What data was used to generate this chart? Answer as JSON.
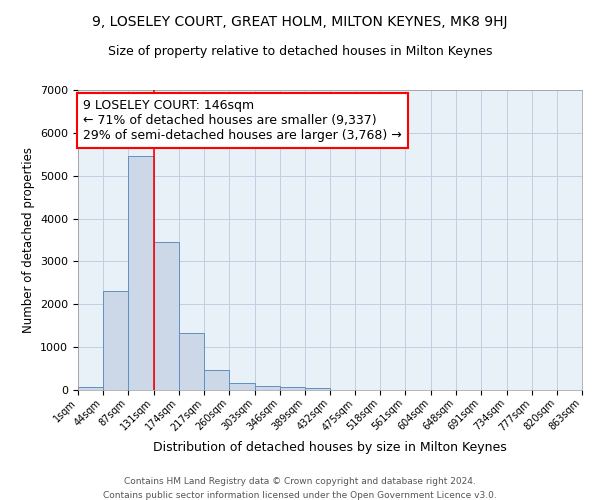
{
  "title": "9, LOSELEY COURT, GREAT HOLM, MILTON KEYNES, MK8 9HJ",
  "subtitle": "Size of property relative to detached houses in Milton Keynes",
  "xlabel": "Distribution of detached houses by size in Milton Keynes",
  "ylabel": "Number of detached properties",
  "footer1": "Contains HM Land Registry data © Crown copyright and database right 2024.",
  "footer2": "Contains public sector information licensed under the Open Government Licence v3.0.",
  "bins": [
    1,
    44,
    87,
    131,
    174,
    217,
    260,
    303,
    346,
    389,
    432,
    475,
    518,
    561,
    604,
    648,
    691,
    734,
    777,
    820,
    863
  ],
  "values": [
    75,
    2300,
    5450,
    3450,
    1340,
    470,
    175,
    100,
    60,
    40,
    0,
    0,
    0,
    0,
    0,
    0,
    0,
    0,
    0,
    0
  ],
  "bar_color": "#ccd8e8",
  "bar_edge_color": "#6090c0",
  "grid_color": "#c0d0e0",
  "annotation_line1": "9 LOSELEY COURT: 146sqm",
  "annotation_line2": "← 71% of detached houses are smaller (9,337)",
  "annotation_line3": "29% of semi-detached houses are larger (3,768) →",
  "annotation_box_color": "white",
  "annotation_border_color": "red",
  "vline_x": 131,
  "vline_color": "red",
  "ylim": [
    0,
    7000
  ],
  "bg_color": "#e8f0f8",
  "title_fontsize": 10,
  "subtitle_fontsize": 9,
  "annotation_fontsize": 9
}
